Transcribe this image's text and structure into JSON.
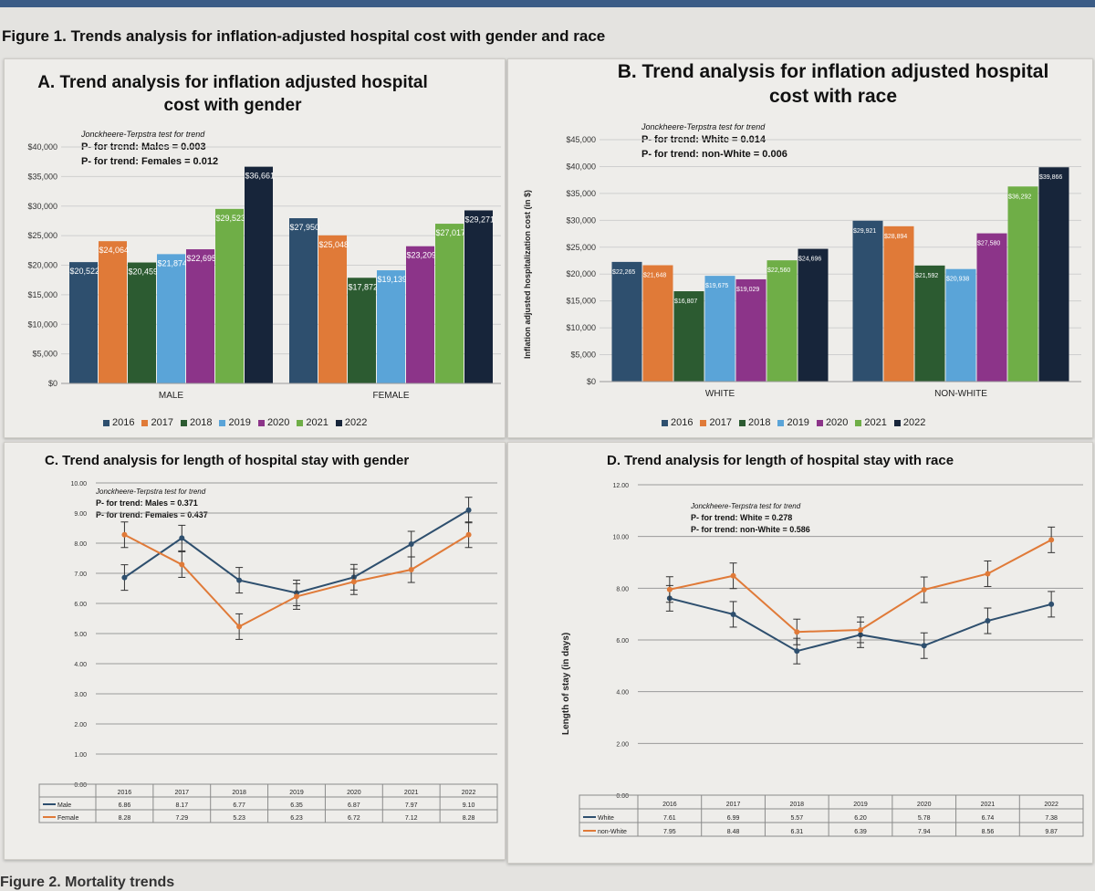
{
  "figure_title": "Figure 1. Trends analysis for inflation-adjusted hospital cost with gender and race",
  "figure2_title": "Figure 2. Mortality trends",
  "legend_years": [
    "2016",
    "2017",
    "2018",
    "2019",
    "2020",
    "2021",
    "2022"
  ],
  "colors": {
    "2016": "#2e4f6e",
    "2017": "#e07a38",
    "2018": "#2c5b31",
    "2019": "#5aa4d8",
    "2020": "#8c3489",
    "2021": "#6fae47",
    "2022": "#17253a",
    "male": "#2e4f6e",
    "female": "#e07a38"
  },
  "panel_a": {
    "title_line1": "A. Trend analysis for inflation adjusted hospital",
    "title_line2": "cost with gender",
    "test_name": "Jonckheere-Terpstra test for trend",
    "p1": "P- for trend: Males = 0.003",
    "p2": "P- for trend: Females = 0.012"
  },
  "panel_b": {
    "title_line1": "B. Trend analysis for inflation adjusted hospital",
    "title_line2": "cost with race",
    "test_name": "Jonckheere-Terpstra test for trend",
    "p1": "P- for trend: White = 0.014",
    "p2": "P- for trend: non-White = 0.006",
    "ylabel": "Inflation adjusted hospitalization cost (in $)"
  },
  "panel_c": {
    "title": "C. Trend analysis for length of hospital stay with gender",
    "test_name": "Jonckheere-Terpstra test for trend",
    "p1": "P- for trend: Males = 0.371",
    "p2": "P- for trend: Females = 0.437"
  },
  "panel_d": {
    "title": "D. Trend analysis for length of hospital stay with race",
    "test_name": "Jonckheere-Terpstra test for trend",
    "p1": "P- for trend: White = 0.278",
    "p2": "P- for trend: non-White = 0.586",
    "ylabel": "Length of stay (in days)"
  },
  "chart_data": [
    {
      "id": "A",
      "type": "bar",
      "title": "A. Trend analysis for inflation adjusted hospital cost with gender",
      "categories": [
        "MALE",
        "FEMALE"
      ],
      "ylim": [
        0,
        40000
      ],
      "yticks": [
        "$0",
        "$5,000",
        "$10,000",
        "$15,000",
        "$20,000",
        "$25,000",
        "$30,000",
        "$35,000",
        "$40,000"
      ],
      "series": [
        {
          "name": "2016",
          "values": [
            20522,
            27950
          ],
          "labels": [
            "$20,522",
            "$27,950"
          ]
        },
        {
          "name": "2017",
          "values": [
            24064,
            25048
          ],
          "labels": [
            "$24,064",
            "$25,048"
          ]
        },
        {
          "name": "2018",
          "values": [
            20459,
            17872
          ],
          "labels": [
            "$20,459",
            "$17,872"
          ]
        },
        {
          "name": "2019",
          "values": [
            21874,
            19139
          ],
          "labels": [
            "$21,874",
            "$19,139"
          ]
        },
        {
          "name": "2020",
          "values": [
            22695,
            23209
          ],
          "labels": [
            "$22,695",
            "$23,209"
          ]
        },
        {
          "name": "2021",
          "values": [
            29523,
            27017
          ],
          "labels": [
            "$29,523",
            "$27,017"
          ]
        },
        {
          "name": "2022",
          "values": [
            36661,
            29271
          ],
          "labels": [
            "$36,661",
            "$29,271"
          ]
        }
      ]
    },
    {
      "id": "B",
      "type": "bar",
      "title": "B. Trend analysis for inflation adjusted hospital cost with race",
      "categories": [
        "WHITE",
        "NON-WHITE"
      ],
      "ylim": [
        0,
        45000
      ],
      "yticks": [
        "$0",
        "$5,000",
        "$10,000",
        "$15,000",
        "$20,000",
        "$25,000",
        "$30,000",
        "$35,000",
        "$40,000",
        "$45,000"
      ],
      "ylabel": "Inflation adjusted hospitalization cost (in $)",
      "series": [
        {
          "name": "2016",
          "values": [
            22265,
            29921
          ],
          "labels": [
            "$22,265",
            "$29,921"
          ]
        },
        {
          "name": "2017",
          "values": [
            21648,
            28894
          ],
          "labels": [
            "$21,648",
            "$28,894"
          ]
        },
        {
          "name": "2018",
          "values": [
            16807,
            21592
          ],
          "labels": [
            "$16,807",
            "$21,592"
          ]
        },
        {
          "name": "2019",
          "values": [
            19675,
            20938
          ],
          "labels": [
            "$19,675",
            "$20,938"
          ]
        },
        {
          "name": "2020",
          "values": [
            19029,
            27580
          ],
          "labels": [
            "$19,029",
            "$27,580"
          ]
        },
        {
          "name": "2021",
          "values": [
            22560,
            36292
          ],
          "labels": [
            "$22,560",
            "$36,292"
          ]
        },
        {
          "name": "2022",
          "values": [
            24696,
            39866
          ],
          "labels": [
            "$24,696",
            "$39,866"
          ]
        }
      ]
    },
    {
      "id": "C",
      "type": "line",
      "title": "C. Trend analysis for length of hospital stay with gender",
      "x": [
        "2016",
        "2017",
        "2018",
        "2019",
        "2020",
        "2021",
        "2022"
      ],
      "ylim": [
        0,
        10
      ],
      "yticks": [
        "0.00",
        "1.00",
        "2.00",
        "3.00",
        "4.00",
        "5.00",
        "6.00",
        "7.00",
        "8.00",
        "9.00",
        "10.00"
      ],
      "series": [
        {
          "name": "Male",
          "values": [
            6.86,
            8.17,
            6.77,
            6.35,
            6.87,
            7.97,
            9.1
          ],
          "labels": [
            "6.86",
            "8.17",
            "6.77",
            "6.35",
            "6.87",
            "7.97",
            "9.10"
          ]
        },
        {
          "name": "Female",
          "values": [
            8.28,
            7.29,
            5.23,
            6.23,
            6.72,
            7.12,
            8.28
          ],
          "labels": [
            "8.28",
            "7.29",
            "5.23",
            "6.23",
            "6.72",
            "7.12",
            "8.28"
          ]
        }
      ]
    },
    {
      "id": "D",
      "type": "line",
      "title": "D. Trend analysis for length of hospital stay with race",
      "x": [
        "2016",
        "2017",
        "2018",
        "2019",
        "2020",
        "2021",
        "2022"
      ],
      "ylim": [
        0,
        12
      ],
      "yticks": [
        "0.00",
        "2.00",
        "4.00",
        "6.00",
        "8.00",
        "10.00",
        "12.00"
      ],
      "ylabel": "Length of stay (in days)",
      "series": [
        {
          "name": "White",
          "values": [
            7.61,
            6.99,
            5.57,
            6.2,
            5.78,
            6.74,
            7.38
          ],
          "labels": [
            "7.61",
            "6.99",
            "5.57",
            "6.20",
            "5.78",
            "6.74",
            "7.38"
          ]
        },
        {
          "name": "non-White",
          "values": [
            7.95,
            8.48,
            6.31,
            6.39,
            7.94,
            8.56,
            9.87
          ],
          "labels": [
            "7.95",
            "8.48",
            "6.31",
            "6.39",
            "7.94",
            "8.56",
            "9.87"
          ]
        }
      ]
    }
  ]
}
